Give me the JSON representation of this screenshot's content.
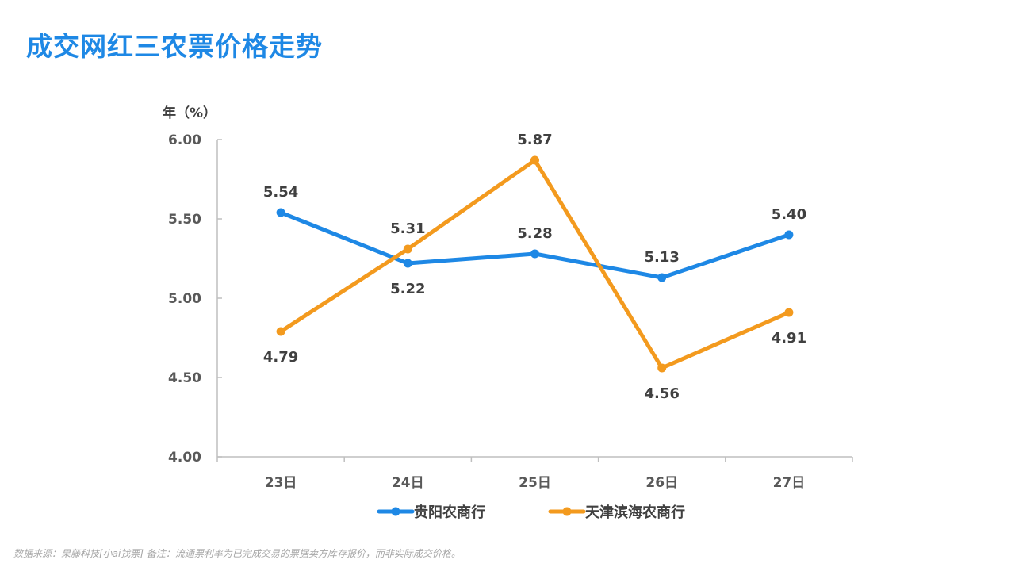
{
  "title": "成交网红三农票价格走势",
  "footnote": "数据来源：果藤科技[小ai找票] 备注：流通票利率为已完成交易的票据卖方库存报价，而非实际成交价格。",
  "chart_data": {
    "type": "line",
    "title": "成交网红三农票价格走势",
    "ylabel": "年（%）",
    "xlabel": "",
    "categories": [
      "23日",
      "24日",
      "25日",
      "26日",
      "27日"
    ],
    "ylim": [
      4.0,
      6.0
    ],
    "yticks": [
      "4.00",
      "4.50",
      "5.00",
      "5.50",
      "6.00"
    ],
    "grid": false,
    "legend_position": "bottom",
    "series": [
      {
        "name": "贵阳农商行",
        "color": "#1e88e5",
        "values": [
          5.54,
          5.22,
          5.28,
          5.13,
          5.4
        ],
        "labels": [
          "5.54",
          "5.22",
          "5.28",
          "5.13",
          "5.40"
        ],
        "label_positions": [
          "above",
          "below",
          "above",
          "above",
          "above"
        ]
      },
      {
        "name": "天津滨海农商行",
        "color": "#f39a1e",
        "values": [
          4.79,
          5.31,
          5.87,
          4.56,
          4.91
        ],
        "labels": [
          "4.79",
          "5.31",
          "5.87",
          "4.56",
          "4.91"
        ],
        "label_positions": [
          "below",
          "above",
          "above",
          "below",
          "below"
        ]
      }
    ]
  }
}
